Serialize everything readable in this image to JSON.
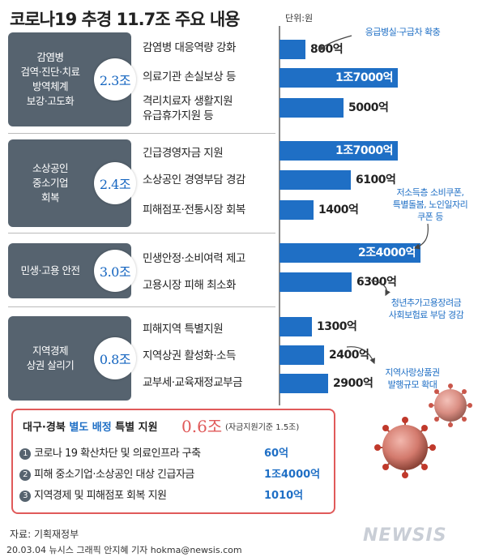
{
  "title": "코로나19 추경 11.7조 주요 내용",
  "unit": "단위:원",
  "categories": [
    {
      "label": "감염병\n검역·진단·치료\n방역체계\n보강·고도화",
      "total": "2.3조"
    },
    {
      "label": "소상공인\n중소기업\n회복",
      "total": "2.4조"
    },
    {
      "label": "민생·고용 안전",
      "total": "3.0조"
    },
    {
      "label": "지역경제\n상권 살리기",
      "total": "0.8조"
    }
  ],
  "chart_data": {
    "type": "bar",
    "orientation": "horizontal",
    "title": "코로나19 추경 11.7조 주요 내용",
    "unit": "단위:원",
    "categories": [
      "감염병 대응역량 강화",
      "의료기관 손실보상 등",
      "격리치료자 생활지원\n유급휴가지원 등",
      "긴급경영자금 지원",
      "소상공인 경영부담 경감",
      "피해점포·전통시장 회복",
      "민생안정·소비여력 제고",
      "고용시장 피해 최소화",
      "피해지역 특별지원",
      "지역상권 활성화·소득",
      "교부세·교육재정교부금"
    ],
    "values": [
      800,
      17000,
      5000,
      17000,
      6100,
      1400,
      24000,
      6300,
      1300,
      2400,
      2900
    ],
    "value_labels": [
      "800억",
      "1조7000억",
      "5000억",
      "1조7000억",
      "6100억",
      "1400억",
      "2조4000억",
      "6300억",
      "1300억",
      "2400억",
      "2900억"
    ],
    "value_unit": "억원",
    "color": "#1f6fc5"
  },
  "annotations": [
    "응급병실·구급차 확충",
    "저소득층 소비쿠폰,\n특별돌봄, 노인일자리\n쿠폰 등",
    "청년추가고용장려금\n사회보험료 부담 경감",
    "지역사랑상품권\n발행규모 확대"
  ],
  "special": {
    "head_a": "대구·경북 ",
    "head_highlight": "별도 배정",
    "head_b": " 특별 지원",
    "total": "0.6조",
    "note": "(자금지원기준 1.5조)",
    "items": [
      {
        "num": "1",
        "label": "코로나 19 확산차단 및 의료인프라 구축",
        "value": "60억"
      },
      {
        "num": "2",
        "label": "피해 중소기업·소상공인 대상 긴급자금",
        "value": "1조4000억"
      },
      {
        "num": "3",
        "label": "지역경제 및 피해점포 회복 지원",
        "value": "1010억"
      }
    ]
  },
  "source": "자료: 기획재정부",
  "credit": "20.03.04  뉴시스 그래픽 안지혜 기자  hokma@newsis.com",
  "logo": "NEWSIS",
  "colors": {
    "bar": "#1f6fc5",
    "category_box": "#56636f",
    "accent_red": "#e05a5a"
  }
}
